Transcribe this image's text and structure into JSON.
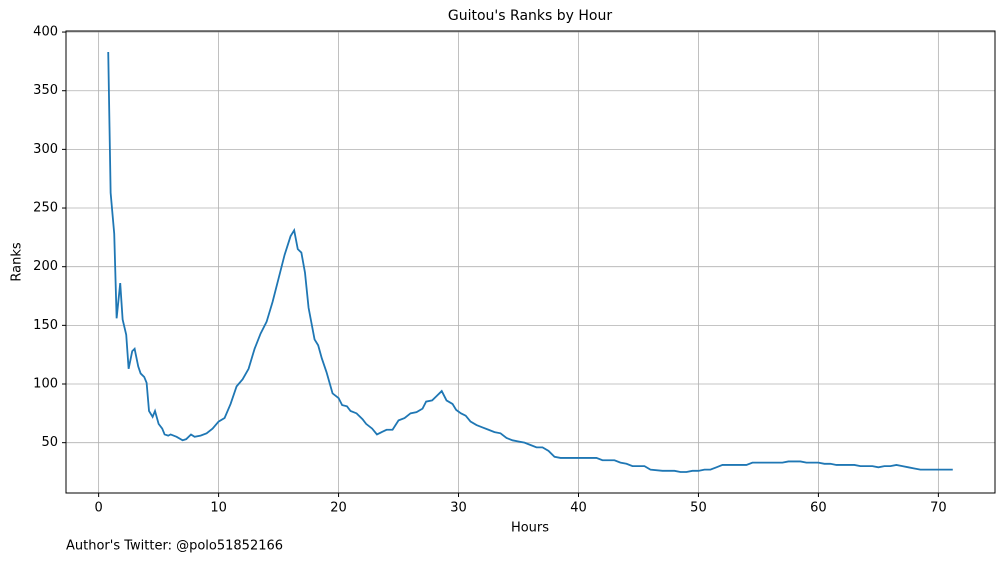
{
  "chart_data": {
    "type": "line",
    "title": "Guitou's Ranks by Hour",
    "xlabel": "Hours",
    "ylabel": "Ranks",
    "footnote": "Author's Twitter: @polo51852166",
    "x": [
      0.8,
      1.0,
      1.3,
      1.5,
      1.8,
      2.0,
      2.3,
      2.5,
      2.8,
      3.0,
      3.3,
      3.5,
      3.8,
      4.0,
      4.2,
      4.5,
      4.7,
      5.0,
      5.3,
      5.5,
      5.8,
      6.0,
      6.5,
      7.0,
      7.3,
      7.7,
      8.0,
      8.5,
      9.0,
      9.5,
      10.0,
      10.5,
      11.0,
      11.5,
      12.0,
      12.5,
      13.0,
      13.5,
      14.0,
      14.5,
      15.0,
      15.5,
      16.0,
      16.3,
      16.6,
      16.9,
      17.2,
      17.5,
      18.0,
      18.3,
      18.6,
      19.0,
      19.5,
      20.0,
      20.3,
      20.7,
      21.0,
      21.5,
      22.0,
      22.3,
      22.8,
      23.2,
      23.6,
      24.0,
      24.5,
      25.0,
      25.5,
      26.0,
      26.5,
      27.0,
      27.3,
      27.8,
      28.2,
      28.6,
      29.0,
      29.5,
      29.8,
      30.2,
      30.6,
      31.0,
      31.5,
      32.0,
      32.5,
      33.0,
      33.5,
      34.0,
      34.5,
      35.0,
      35.5,
      36.0,
      36.5,
      37.0,
      37.5,
      38.0,
      38.5,
      39.0,
      40.0,
      41.0,
      41.5,
      42.0,
      43.0,
      43.5,
      44.0,
      44.5,
      45.5,
      46.0,
      47.0,
      48.0,
      48.5,
      49.0,
      49.5,
      50.0,
      50.5,
      51.0,
      51.5,
      52.0,
      53.0,
      54.0,
      54.5,
      55.0,
      57.0,
      57.5,
      58.5,
      59.0,
      60.0,
      60.5,
      61.0,
      61.5,
      63.0,
      63.5,
      64.5,
      65.0,
      65.5,
      66.0,
      66.5,
      67.0,
      67.5,
      68.0,
      68.5,
      71.2
    ],
    "series": [
      {
        "name": "Ranks",
        "color": "#1f77b4",
        "values": [
          383,
          263,
          228,
          156,
          186,
          155,
          142,
          113,
          128,
          130,
          115,
          109,
          106,
          101,
          77,
          72,
          77,
          66,
          62,
          57,
          56,
          57,
          55,
          52,
          53,
          57,
          55,
          56,
          58,
          62,
          68,
          71,
          83,
          98,
          104,
          113,
          130,
          143,
          153,
          170,
          190,
          210,
          226,
          231,
          215,
          212,
          195,
          165,
          138,
          133,
          122,
          110,
          92,
          88,
          82,
          81,
          77,
          75,
          70,
          66,
          62,
          57,
          59,
          61,
          61,
          69,
          71,
          75,
          76,
          79,
          85,
          86,
          90,
          94,
          86,
          83,
          78,
          75,
          73,
          68,
          65,
          63,
          61,
          59,
          58,
          54,
          52,
          51,
          50,
          48,
          46,
          46,
          43,
          38,
          37,
          37,
          37,
          37,
          37,
          35,
          35,
          33,
          32,
          30,
          30,
          27,
          26,
          26,
          25,
          25,
          26,
          26,
          27,
          27,
          29,
          31,
          31,
          31,
          33,
          33,
          33,
          34,
          34,
          33,
          33,
          32,
          32,
          31,
          31,
          30,
          30,
          29,
          30,
          30,
          31,
          30,
          29,
          28,
          27,
          27
        ]
      }
    ],
    "xlim": [
      -2.72,
      74.72
    ],
    "ylim": [
      7.1,
      400.9
    ],
    "xticks": [
      0,
      10,
      20,
      30,
      40,
      50,
      60,
      70
    ],
    "yticks": [
      50,
      100,
      150,
      200,
      250,
      300,
      350,
      400
    ],
    "grid": true
  }
}
